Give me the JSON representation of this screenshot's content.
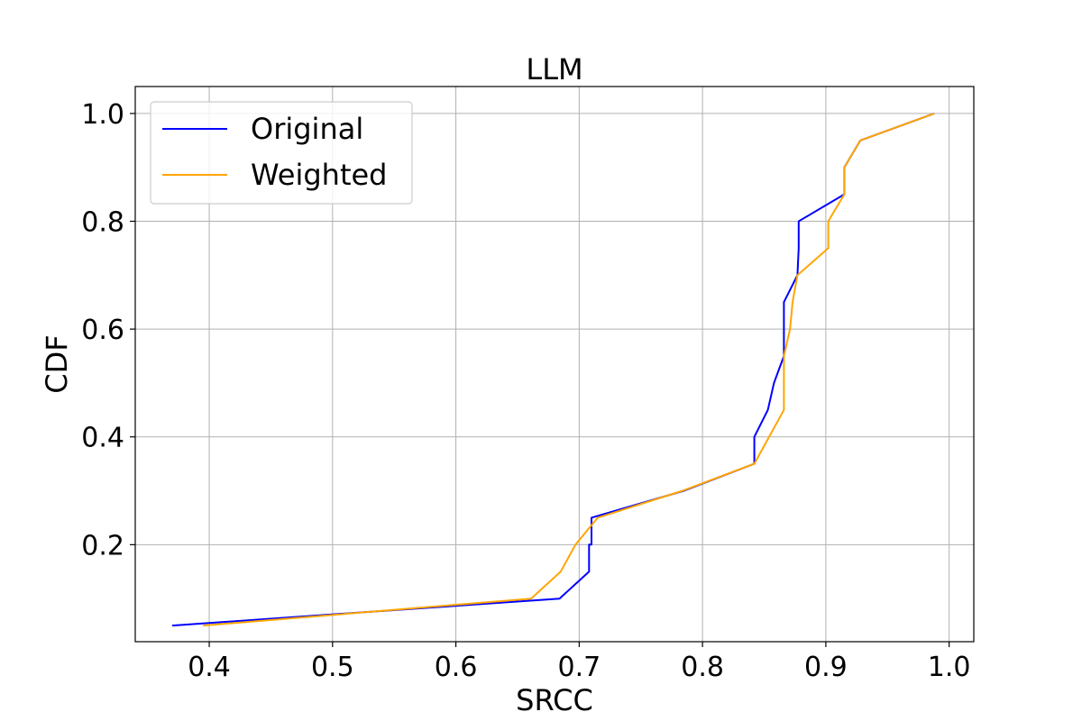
{
  "chart_data": {
    "type": "line",
    "title": "LLM",
    "xlabel": "SRCC",
    "ylabel": "CDF",
    "xlim": [
      0.34,
      1.02
    ],
    "ylim": [
      0.02,
      1.05
    ],
    "xticks": [
      0.4,
      0.5,
      0.6,
      0.7,
      0.8,
      0.9,
      1.0
    ],
    "xtick_labels": [
      "0.4",
      "0.5",
      "0.6",
      "0.7",
      "0.8",
      "0.9",
      "1.0"
    ],
    "yticks": [
      0.2,
      0.4,
      0.6,
      0.8,
      1.0
    ],
    "ytick_labels": [
      "0.2",
      "0.4",
      "0.6",
      "0.8",
      "1.0"
    ],
    "grid": true,
    "legend_position": "top-left",
    "series": [
      {
        "name": "Original",
        "color": "#0000ff",
        "x": [
          0.37,
          0.684,
          0.708,
          0.708,
          0.71,
          0.71,
          0.785,
          0.842,
          0.842,
          0.853,
          0.858,
          0.866,
          0.866,
          0.866,
          0.877,
          0.878,
          0.878,
          0.915,
          0.915,
          0.915,
          0.928,
          0.988
        ],
        "y": [
          0.05,
          0.1,
          0.15,
          0.2,
          0.2,
          0.25,
          0.3,
          0.35,
          0.4,
          0.45,
          0.5,
          0.55,
          0.6,
          0.65,
          0.7,
          0.75,
          0.8,
          0.85,
          0.85,
          0.9,
          0.95,
          1.0
        ]
      },
      {
        "name": "Weighted",
        "color": "#ffa500",
        "x": [
          0.395,
          0.661,
          0.685,
          0.697,
          0.715,
          0.784,
          0.842,
          0.866,
          0.866,
          0.871,
          0.873,
          0.877,
          0.902,
          0.902,
          0.915,
          0.915,
          0.928,
          0.988
        ],
        "y": [
          0.05,
          0.1,
          0.15,
          0.2,
          0.25,
          0.3,
          0.35,
          0.45,
          0.55,
          0.6,
          0.65,
          0.7,
          0.75,
          0.8,
          0.85,
          0.9,
          0.95,
          1.0
        ]
      }
    ]
  }
}
